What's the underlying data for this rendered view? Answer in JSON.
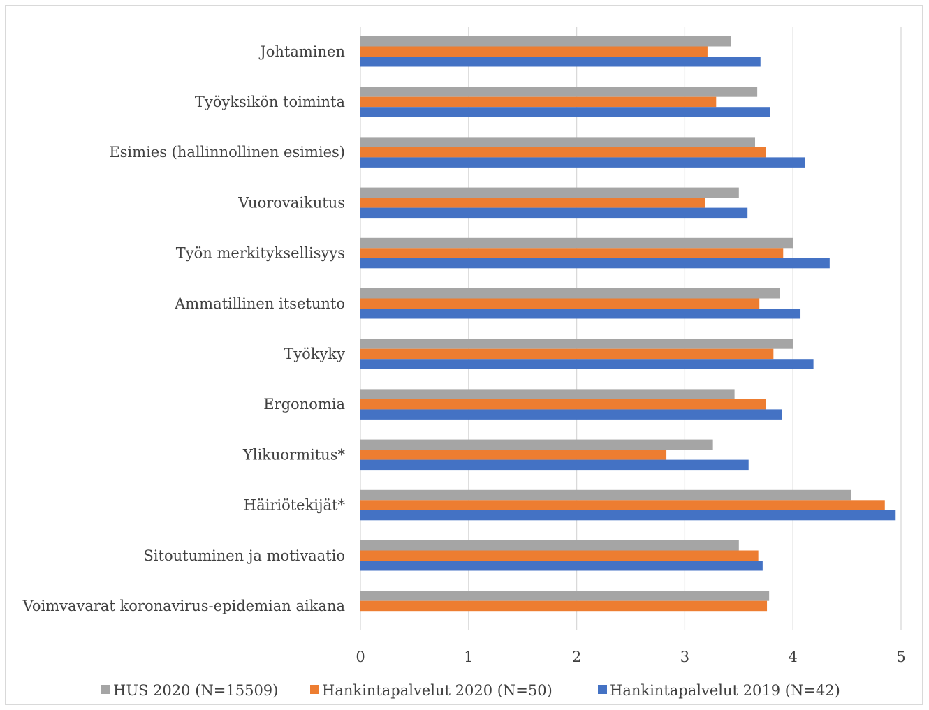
{
  "chart_data": {
    "type": "bar",
    "orientation": "horizontal",
    "categories": [
      "Johtaminen",
      "Työyksikön toiminta",
      "Esimies (hallinnollinen esimies)",
      "Vuorovaikutus",
      "Työn merkityksellisyys",
      "Ammatillinen itsetunto",
      "Työkyky",
      "Ergonomia",
      "Ylikuormitus*",
      "Häiriötekijät*",
      "Sitoutuminen ja motivaatio",
      "Voimvavarat koronavirus-epidemian aikana"
    ],
    "series": [
      {
        "name": "HUS 2020 (N=15509)",
        "color": "#a5a5a5",
        "values": [
          3.43,
          3.67,
          3.65,
          3.5,
          4.0,
          3.88,
          4.0,
          3.46,
          3.26,
          4.54,
          3.5,
          3.78
        ]
      },
      {
        "name": "Hankintapalvelut 2020 (N=50)",
        "color": "#ed7d31",
        "values": [
          3.21,
          3.29,
          3.75,
          3.19,
          3.91,
          3.69,
          3.82,
          3.75,
          2.83,
          4.85,
          3.68,
          3.76
        ]
      },
      {
        "name": "Hankintapalvelut 2019 (N=42)",
        "color": "#4472c4",
        "values": [
          3.7,
          3.79,
          4.11,
          3.58,
          4.34,
          4.07,
          4.19,
          3.9,
          3.59,
          4.95,
          3.72,
          null
        ]
      }
    ],
    "xlim": [
      0,
      5
    ],
    "xticks": [
      "0",
      "1",
      "2",
      "3",
      "4",
      "5"
    ],
    "grid": true,
    "legend_position": "bottom",
    "gridline_color": "#d9d9d9"
  }
}
